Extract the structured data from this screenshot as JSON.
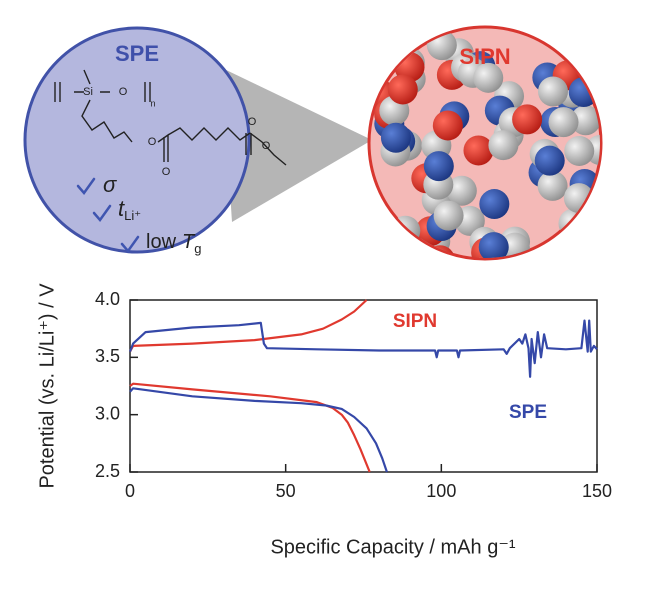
{
  "diagram": {
    "left_title": "SPE",
    "right_title": "SIPN",
    "atoms": [
      "Si",
      "O",
      "n",
      "O",
      "O",
      "O",
      "O"
    ],
    "checklist": [
      {
        "symbol": "σ"
      },
      {
        "symbol": "t",
        "subscript": "Li⁺"
      },
      {
        "label": "low",
        "symbol": "T",
        "subscript": "g"
      }
    ]
  },
  "chart_data": {
    "type": "line",
    "xlabel": "Specific Capacity / mAh g⁻¹",
    "ylabel": "Potential (vs. Li/Li⁺) / V",
    "xlim": [
      0,
      150
    ],
    "ylim": [
      2.5,
      4.0
    ],
    "xticks": [
      0,
      50,
      100,
      150
    ],
    "yticks": [
      {
        "value": 4.0,
        "label": "4.0"
      },
      3.5,
      {
        "value": 3.0,
        "label": "3.0"
      },
      2.5
    ],
    "series": [
      {
        "name": "SIPN",
        "color": "#e0392f",
        "x": [
          0,
          1,
          20,
          40,
          55,
          62,
          68,
          72,
          76,
          76,
          0,
          1,
          20,
          45,
          60,
          65,
          68,
          70,
          72,
          74,
          77
        ],
        "values": [
          3.55,
          3.6,
          3.62,
          3.65,
          3.7,
          3.75,
          3.83,
          3.9,
          4.0,
          null,
          3.25,
          3.27,
          3.22,
          3.16,
          3.11,
          3.06,
          3.0,
          2.93,
          2.82,
          2.7,
          2.5
        ]
      },
      {
        "name": "SPE",
        "color": "#3548a8",
        "x": [
          0,
          1,
          5,
          20,
          35,
          42,
          43,
          44,
          60,
          80,
          98,
          98.5,
          99,
          105,
          105.5,
          106,
          120,
          121,
          122,
          125,
          126,
          127,
          128,
          128.5,
          129,
          130,
          131,
          132,
          133,
          134,
          140,
          145,
          146,
          147,
          147.5,
          148,
          149,
          150,
          150,
          0,
          1,
          20,
          40,
          55,
          63,
          68,
          72,
          76,
          79,
          81,
          82.5
        ],
        "values": [
          3.55,
          3.62,
          3.72,
          3.76,
          3.78,
          3.8,
          3.62,
          3.58,
          3.57,
          3.56,
          3.56,
          3.5,
          3.56,
          3.56,
          3.5,
          3.56,
          3.57,
          3.53,
          3.58,
          3.66,
          3.62,
          3.7,
          3.58,
          3.33,
          3.66,
          3.45,
          3.72,
          3.5,
          3.7,
          3.58,
          3.57,
          3.58,
          3.82,
          3.55,
          3.82,
          3.55,
          3.6,
          3.57,
          null,
          3.2,
          3.23,
          3.16,
          3.12,
          3.1,
          3.08,
          3.05,
          2.98,
          2.88,
          2.75,
          2.62,
          2.5
        ]
      }
    ]
  }
}
